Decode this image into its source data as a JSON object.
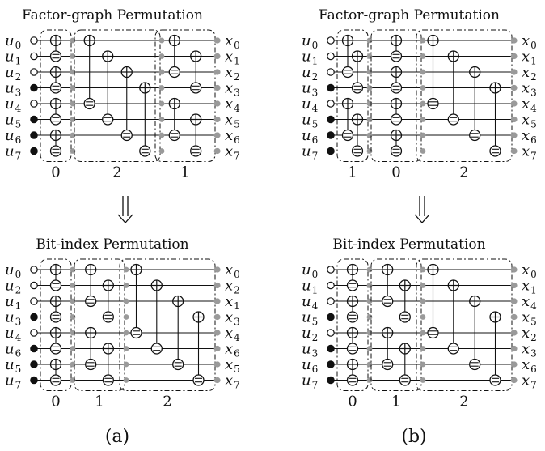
{
  "panels": [
    {
      "id": "a",
      "caption": "(a)",
      "top": {
        "title": "Factor-graph Permutation",
        "inputs": [
          {
            "v": "u",
            "i": "0",
            "frozen": false
          },
          {
            "v": "u",
            "i": "1",
            "frozen": false
          },
          {
            "v": "u",
            "i": "2",
            "frozen": false
          },
          {
            "v": "u",
            "i": "3",
            "frozen": true
          },
          {
            "v": "u",
            "i": "4",
            "frozen": false
          },
          {
            "v": "u",
            "i": "5",
            "frozen": true
          },
          {
            "v": "u",
            "i": "6",
            "frozen": true
          },
          {
            "v": "u",
            "i": "7",
            "frozen": true
          }
        ],
        "outputs": [
          {
            "v": "x",
            "i": "0"
          },
          {
            "v": "x",
            "i": "1"
          },
          {
            "v": "x",
            "i": "2"
          },
          {
            "v": "x",
            "i": "3"
          },
          {
            "v": "x",
            "i": "4"
          },
          {
            "v": "x",
            "i": "5"
          },
          {
            "v": "x",
            "i": "6"
          },
          {
            "v": "x",
            "i": "7"
          }
        ],
        "stages": [
          {
            "label": "0",
            "gates": [
              [
                0,
                1
              ],
              [
                2,
                3
              ],
              [
                4,
                5
              ],
              [
                6,
                7
              ]
            ]
          },
          {
            "label": "2",
            "gates": [
              [
                0,
                4
              ],
              [
                1,
                5
              ],
              [
                2,
                6
              ],
              [
                3,
                7
              ]
            ]
          },
          {
            "label": "1",
            "gates": [
              [
                0,
                2
              ],
              [
                1,
                3
              ],
              [
                4,
                6
              ],
              [
                5,
                7
              ]
            ]
          }
        ]
      },
      "bottom": {
        "title": "Bit-index Permutation",
        "inputs": [
          {
            "v": "u",
            "i": "0",
            "frozen": false
          },
          {
            "v": "u",
            "i": "2",
            "frozen": false
          },
          {
            "v": "u",
            "i": "1",
            "frozen": false
          },
          {
            "v": "u",
            "i": "3",
            "frozen": true
          },
          {
            "v": "u",
            "i": "4",
            "frozen": false
          },
          {
            "v": "u",
            "i": "6",
            "frozen": true
          },
          {
            "v": "u",
            "i": "5",
            "frozen": true
          },
          {
            "v": "u",
            "i": "7",
            "frozen": true
          }
        ],
        "outputs": [
          {
            "v": "x",
            "i": "0"
          },
          {
            "v": "x",
            "i": "2"
          },
          {
            "v": "x",
            "i": "1"
          },
          {
            "v": "x",
            "i": "3"
          },
          {
            "v": "x",
            "i": "4"
          },
          {
            "v": "x",
            "i": "6"
          },
          {
            "v": "x",
            "i": "5"
          },
          {
            "v": "x",
            "i": "7"
          }
        ],
        "stages": [
          {
            "label": "0",
            "gates": [
              [
                0,
                1
              ],
              [
                2,
                3
              ],
              [
                4,
                5
              ],
              [
                6,
                7
              ]
            ]
          },
          {
            "label": "1",
            "gates": [
              [
                0,
                2
              ],
              [
                1,
                3
              ],
              [
                4,
                6
              ],
              [
                5,
                7
              ]
            ]
          },
          {
            "label": "2",
            "gates": [
              [
                0,
                4
              ],
              [
                1,
                5
              ],
              [
                2,
                6
              ],
              [
                3,
                7
              ]
            ]
          }
        ]
      }
    },
    {
      "id": "b",
      "caption": "(b)",
      "top": {
        "title": "Factor-graph Permutation",
        "inputs": [
          {
            "v": "u",
            "i": "0",
            "frozen": false
          },
          {
            "v": "u",
            "i": "1",
            "frozen": false
          },
          {
            "v": "u",
            "i": "2",
            "frozen": false
          },
          {
            "v": "u",
            "i": "3",
            "frozen": true
          },
          {
            "v": "u",
            "i": "4",
            "frozen": false
          },
          {
            "v": "u",
            "i": "5",
            "frozen": true
          },
          {
            "v": "u",
            "i": "6",
            "frozen": true
          },
          {
            "v": "u",
            "i": "7",
            "frozen": true
          }
        ],
        "outputs": [
          {
            "v": "x",
            "i": "0"
          },
          {
            "v": "x",
            "i": "1"
          },
          {
            "v": "x",
            "i": "2"
          },
          {
            "v": "x",
            "i": "3"
          },
          {
            "v": "x",
            "i": "4"
          },
          {
            "v": "x",
            "i": "5"
          },
          {
            "v": "x",
            "i": "6"
          },
          {
            "v": "x",
            "i": "7"
          }
        ],
        "stages": [
          {
            "label": "1",
            "gates": [
              [
                0,
                2
              ],
              [
                1,
                3
              ],
              [
                4,
                6
              ],
              [
                5,
                7
              ]
            ]
          },
          {
            "label": "0",
            "gates": [
              [
                0,
                1
              ],
              [
                2,
                3
              ],
              [
                4,
                5
              ],
              [
                6,
                7
              ]
            ]
          },
          {
            "label": "2",
            "gates": [
              [
                0,
                4
              ],
              [
                1,
                5
              ],
              [
                2,
                6
              ],
              [
                3,
                7
              ]
            ]
          }
        ]
      },
      "bottom": {
        "title": "Bit-index Permutation",
        "inputs": [
          {
            "v": "u",
            "i": "0",
            "frozen": false
          },
          {
            "v": "u",
            "i": "1",
            "frozen": false
          },
          {
            "v": "u",
            "i": "4",
            "frozen": false
          },
          {
            "v": "u",
            "i": "5",
            "frozen": true
          },
          {
            "v": "u",
            "i": "2",
            "frozen": false
          },
          {
            "v": "u",
            "i": "3",
            "frozen": true
          },
          {
            "v": "u",
            "i": "6",
            "frozen": true
          },
          {
            "v": "u",
            "i": "7",
            "frozen": true
          }
        ],
        "outputs": [
          {
            "v": "x",
            "i": "0"
          },
          {
            "v": "x",
            "i": "1"
          },
          {
            "v": "x",
            "i": "4"
          },
          {
            "v": "x",
            "i": "5"
          },
          {
            "v": "x",
            "i": "2"
          },
          {
            "v": "x",
            "i": "3"
          },
          {
            "v": "x",
            "i": "6"
          },
          {
            "v": "x",
            "i": "7"
          }
        ],
        "stages": [
          {
            "label": "0",
            "gates": [
              [
                0,
                1
              ],
              [
                2,
                3
              ],
              [
                4,
                5
              ],
              [
                6,
                7
              ]
            ]
          },
          {
            "label": "1",
            "gates": [
              [
                0,
                2
              ],
              [
                1,
                3
              ],
              [
                4,
                6
              ],
              [
                5,
                7
              ]
            ]
          },
          {
            "label": "2",
            "gates": [
              [
                0,
                4
              ],
              [
                1,
                5
              ],
              [
                2,
                6
              ],
              [
                3,
                7
              ]
            ]
          }
        ]
      }
    }
  ],
  "colors": {
    "line": "#111111",
    "node_gray": "#9a9a9a",
    "frozen_fill": "#111111",
    "info_fill": "#ffffff"
  }
}
